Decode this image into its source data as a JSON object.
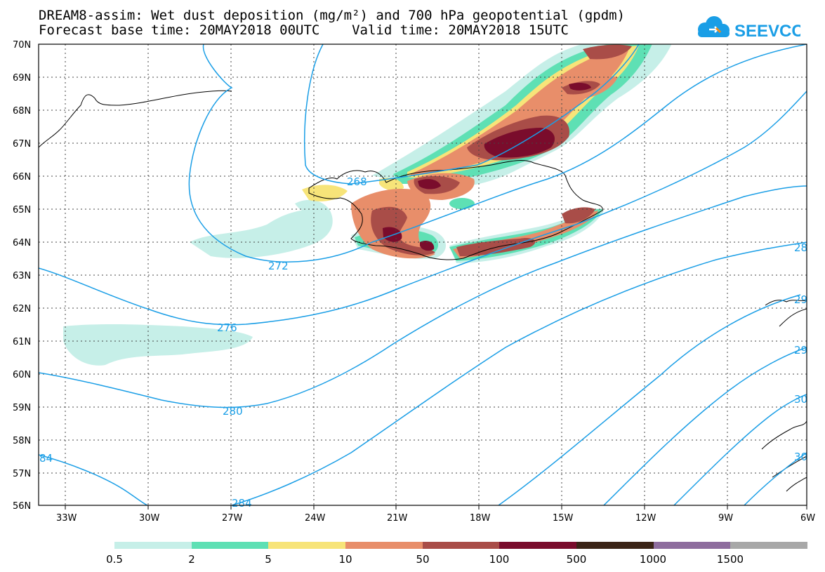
{
  "header": {
    "title_line1": "DREAM8-assim: Wet dust deposition (mg/m²) and 700 hPa geopotential (gpdm)",
    "title_line2": "Forecast base time: 20MAY2018 00UTC    Valid time: 20MAY2018 15UTC"
  },
  "logo": {
    "icon": "cloud-icon",
    "text": "SEEVCCC",
    "color": "#1a9ee6"
  },
  "map": {
    "lat_labels": [
      "70N",
      "69N",
      "68N",
      "67N",
      "66N",
      "65N",
      "64N",
      "63N",
      "62N",
      "61N",
      "60N",
      "59N",
      "58N",
      "57N",
      "56N"
    ],
    "lon_labels": [
      "33W",
      "30W",
      "27W",
      "24W",
      "21W",
      "18W",
      "15W",
      "12W",
      "9W",
      "6W"
    ],
    "contour_labels": [
      "268",
      "272",
      "276",
      "280",
      "284",
      "84",
      "28",
      "29",
      "29",
      "30",
      "30"
    ],
    "contour_color": "#1a9ee6",
    "coast_color": "#000000"
  },
  "legend": {
    "colors": [
      "#c6efe8",
      "#5ee0b4",
      "#f7e479",
      "#e88e6a",
      "#a94d48",
      "#7a0c2c",
      "#3b2417",
      "#8e6d9e",
      "#a8a8a8"
    ],
    "labels": [
      "0.5",
      "2",
      "5",
      "10",
      "50",
      "100",
      "500",
      "1000",
      "1500"
    ]
  }
}
